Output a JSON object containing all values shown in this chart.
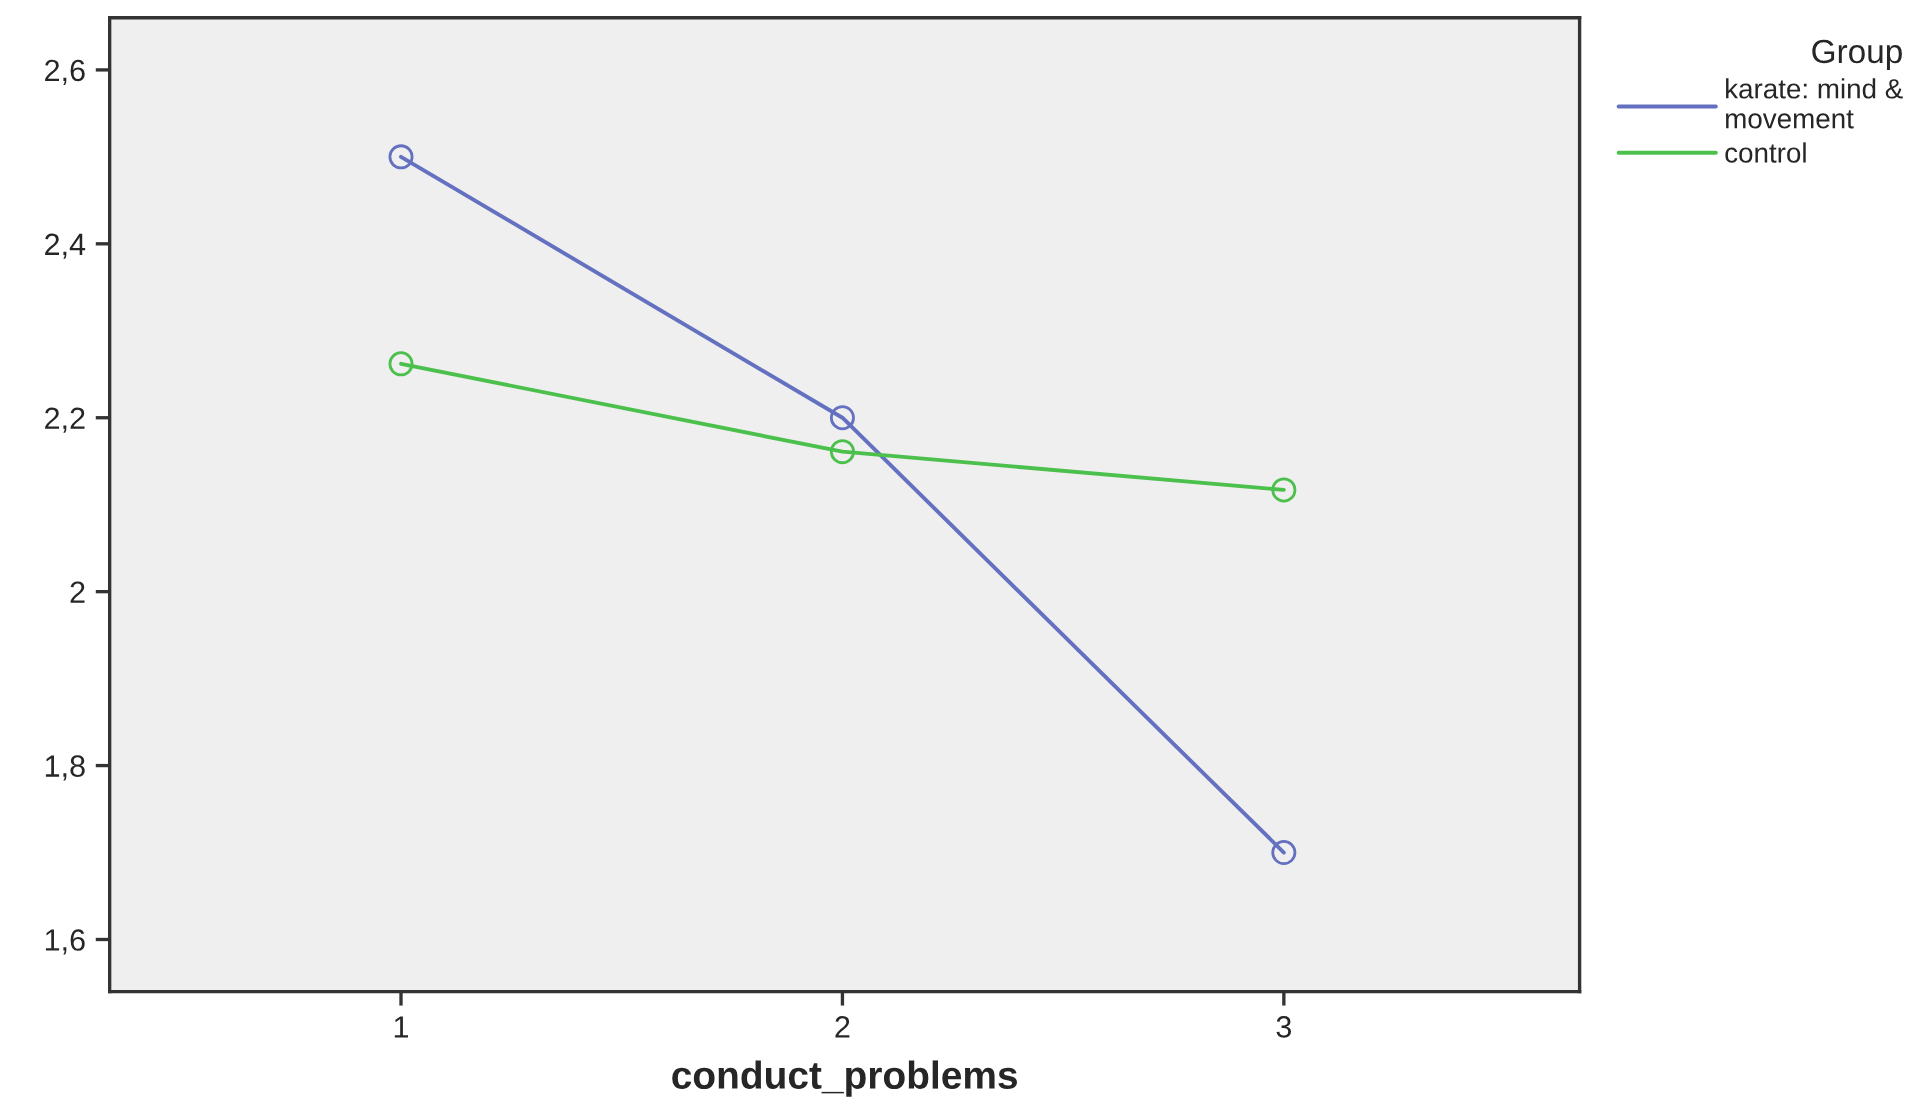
{
  "chart_data": {
    "type": "line",
    "xlabel": "conduct_problems",
    "legend_title": "Group",
    "legend": "top right",
    "marker": "circle",
    "line_style": "solid",
    "grid": false,
    "categories": [
      "1",
      "2",
      "3"
    ],
    "ylim": [
      1.54,
      2.66
    ],
    "yticks": [
      {
        "value": 1.6,
        "label": "1,6"
      },
      {
        "value": 1.8,
        "label": "1,8"
      },
      2,
      {
        "value": 2.2,
        "label": "2,2"
      },
      {
        "value": 2.4,
        "label": "2,4"
      },
      {
        "value": 2.6,
        "label": "2,6"
      }
    ],
    "series": [
      {
        "name": "karate: mind &\nmovement",
        "color": "#6470c0",
        "values": [
          2.5,
          2.2,
          1.7
        ]
      },
      {
        "name": "control",
        "color": "#4cc04c",
        "values": [
          2.262,
          2.161,
          2.117
        ]
      }
    ]
  }
}
